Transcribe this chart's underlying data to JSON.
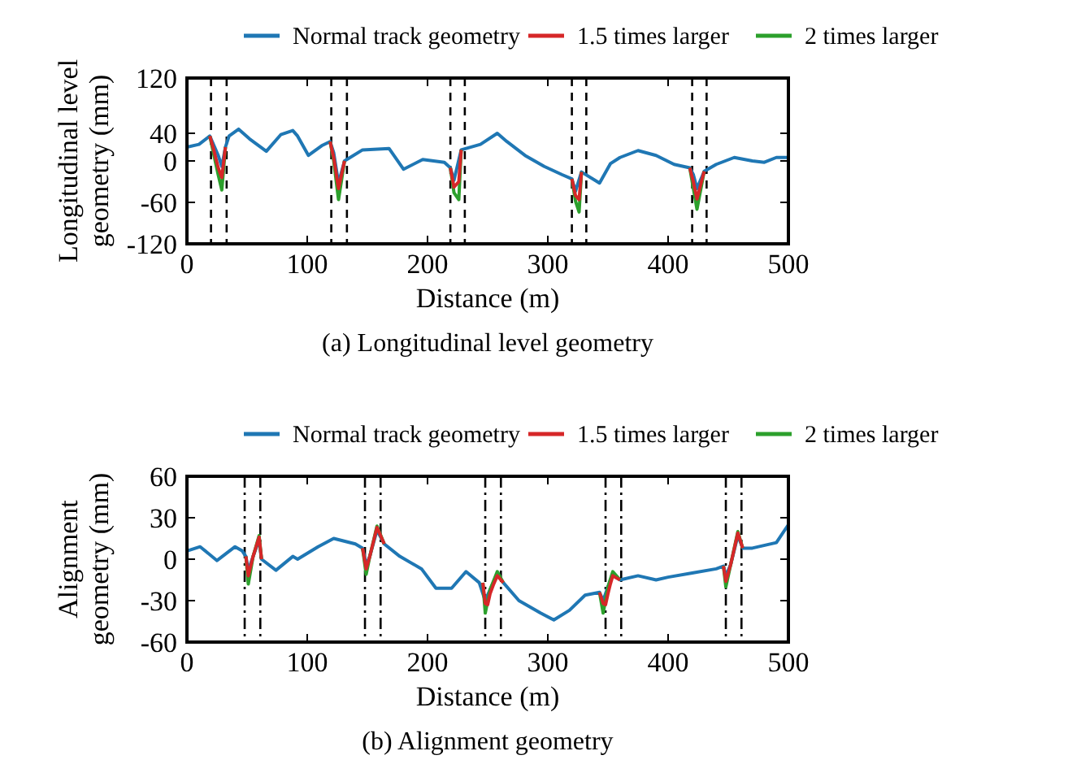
{
  "chart_data": [
    {
      "type": "line",
      "xlabel": "Distance (m)",
      "ylabel": "Longitudinal level\ngeometry (mm)",
      "annotations": [
        "(a) Longitudinal level geometry"
      ],
      "xlim": [
        0,
        500
      ],
      "xticks": [
        0,
        100,
        200,
        300,
        400,
        500
      ],
      "ylim": [
        -120,
        120
      ],
      "yticks": [
        -120,
        -60,
        0,
        40,
        120
      ],
      "legend": "top",
      "grid": false,
      "series": [
        {
          "name": "Normal track geometry",
          "color": "#1f77b4",
          "x": [
            0,
            10,
            19,
            22,
            26,
            29,
            32,
            35,
            43,
            52,
            66,
            78,
            88,
            92,
            101,
            112,
            119,
            122,
            126,
            131,
            146,
            168,
            180,
            196,
            214,
            219,
            222,
            228,
            244,
            258,
            266,
            281,
            297,
            312,
            320,
            323,
            328,
            343,
            352,
            360,
            375,
            390,
            405,
            418,
            421,
            424,
            430,
            440,
            455,
            470,
            480,
            490,
            500
          ],
          "values": [
            20,
            24,
            36,
            24,
            8,
            -8,
            20,
            36,
            46,
            32,
            14,
            38,
            44,
            36,
            8,
            22,
            28,
            12,
            -32,
            0,
            16,
            18,
            -12,
            2,
            -2,
            -10,
            -28,
            16,
            24,
            40,
            28,
            8,
            -8,
            -20,
            -26,
            -44,
            -16,
            -32,
            -4,
            5,
            15,
            8,
            -5,
            -10,
            -20,
            -40,
            -15,
            -5,
            5,
            0,
            -2,
            5,
            5
          ]
        },
        {
          "name": "1.5 times larger",
          "color": "#d62728",
          "x": [
            19,
            22,
            26,
            29,
            32,
            33,
            119,
            122,
            126,
            131,
            132,
            219,
            222,
            226,
            228,
            229,
            320,
            323,
            326,
            328,
            329,
            418,
            421,
            424,
            430
          ],
          "values": [
            36,
            18,
            -10,
            -24,
            20,
            null,
            28,
            5,
            -40,
            0,
            null,
            -10,
            -38,
            -30,
            16,
            null,
            -26,
            -50,
            -56,
            -16,
            null,
            -10,
            -30,
            -55,
            -15
          ]
        },
        {
          "name": "2 times larger",
          "color": "#2ca02c",
          "x": [
            19,
            22,
            26,
            29,
            32,
            33,
            119,
            122,
            126,
            131,
            132,
            219,
            222,
            226,
            228,
            229,
            320,
            323,
            326,
            328,
            329,
            418,
            421,
            424,
            430
          ],
          "values": [
            36,
            12,
            -20,
            -42,
            20,
            null,
            28,
            0,
            -56,
            0,
            null,
            -10,
            -46,
            -56,
            16,
            null,
            -26,
            -58,
            -74,
            -16,
            null,
            -10,
            -40,
            -70,
            -15
          ]
        }
      ],
      "ref_lines": [
        {
          "axis": "x",
          "value": 20,
          "color": "#000000",
          "line_style": "dashed"
        },
        {
          "axis": "x",
          "value": 33,
          "color": "#000000",
          "line_style": "dashed"
        },
        {
          "axis": "x",
          "value": 120,
          "color": "#000000",
          "line_style": "dashed"
        },
        {
          "axis": "x",
          "value": 133,
          "color": "#000000",
          "line_style": "dashed"
        },
        {
          "axis": "x",
          "value": 219,
          "color": "#000000",
          "line_style": "dashed"
        },
        {
          "axis": "x",
          "value": 231,
          "color": "#000000",
          "line_style": "dashed"
        },
        {
          "axis": "x",
          "value": 320,
          "color": "#000000",
          "line_style": "dashed"
        },
        {
          "axis": "x",
          "value": 332,
          "color": "#000000",
          "line_style": "dashed"
        },
        {
          "axis": "x",
          "value": 420,
          "color": "#000000",
          "line_style": "dashed"
        },
        {
          "axis": "x",
          "value": 432,
          "color": "#000000",
          "line_style": "dashed"
        }
      ]
    },
    {
      "type": "line",
      "xlabel": "Distance (m)",
      "ylabel": "Alignment\ngeometry (mm)",
      "annotations": [
        "(b) Alignment geometry"
      ],
      "xlim": [
        0,
        500
      ],
      "xticks": [
        0,
        100,
        200,
        300,
        400,
        500
      ],
      "ylim": [
        -60,
        60
      ],
      "yticks": [
        -60,
        -30,
        0,
        30,
        60
      ],
      "legend": "top",
      "grid": false,
      "series": [
        {
          "name": "Normal track geometry",
          "color": "#1f77b4",
          "x": [
            0,
            11,
            25,
            40,
            46,
            49,
            51,
            55,
            60,
            62,
            74,
            88,
            92,
            109,
            122,
            140,
            146,
            149,
            152,
            158,
            164,
            177,
            195,
            207,
            220,
            232,
            243,
            248,
            252,
            258,
            263,
            276,
            294,
            305,
            318,
            331,
            343,
            346,
            350,
            354,
            360,
            375,
            390,
            400,
            420,
            440,
            446,
            448,
            452,
            458,
            462,
            470,
            490,
            500
          ],
          "values": [
            6,
            9,
            -1,
            9,
            6,
            2,
            -8,
            2,
            14,
            0,
            -8,
            2,
            0,
            9,
            15,
            11,
            8,
            -4,
            2,
            21,
            11,
            2,
            -7,
            -21,
            -21,
            -9,
            -17,
            -30,
            -22,
            -11,
            -17,
            -30,
            -39,
            -44,
            -37,
            -26,
            -24,
            -30,
            -20,
            -11,
            -15,
            -12,
            -15,
            -13,
            -10,
            -7,
            -5,
            -12,
            -4,
            17,
            8,
            8,
            12,
            25
          ]
        },
        {
          "name": "1.5 times larger",
          "color": "#d62728",
          "x": [
            49,
            51,
            55,
            60,
            62,
            63,
            146,
            149,
            152,
            158,
            164,
            165,
            246,
            248,
            250,
            252,
            255,
            258,
            263,
            264,
            343,
            346,
            348,
            350,
            352,
            354,
            360,
            361,
            446,
            448,
            452,
            458,
            462
          ],
          "values": [
            2,
            -12,
            2,
            16,
            0,
            null,
            8,
            -7,
            2,
            23,
            11,
            null,
            -17,
            -32,
            -33,
            -25,
            -18,
            -12,
            -17,
            null,
            -24,
            -32,
            -33,
            -25,
            -18,
            -12,
            -15,
            null,
            -5,
            -16,
            -4,
            19,
            8
          ]
        },
        {
          "name": "2 times larger",
          "color": "#2ca02c",
          "x": [
            49,
            51,
            55,
            60,
            62,
            63,
            146,
            149,
            152,
            158,
            164,
            165,
            246,
            248,
            252,
            258,
            263,
            264,
            343,
            346,
            350,
            354,
            360,
            361,
            446,
            448,
            452,
            458,
            462
          ],
          "values": [
            2,
            -18,
            2,
            17,
            0,
            null,
            8,
            -11,
            2,
            24,
            11,
            null,
            -17,
            -39,
            -22,
            -9,
            -17,
            null,
            -24,
            -39,
            -20,
            -9,
            -15,
            null,
            -5,
            -20,
            -4,
            20,
            8
          ]
        }
      ],
      "ref_lines": [
        {
          "axis": "x",
          "value": 48,
          "color": "#000000",
          "line_style": "dashdot"
        },
        {
          "axis": "x",
          "value": 61,
          "color": "#000000",
          "line_style": "dashdot"
        },
        {
          "axis": "x",
          "value": 148,
          "color": "#000000",
          "line_style": "dashdot"
        },
        {
          "axis": "x",
          "value": 161,
          "color": "#000000",
          "line_style": "dashdot"
        },
        {
          "axis": "x",
          "value": 248,
          "color": "#000000",
          "line_style": "dashdot"
        },
        {
          "axis": "x",
          "value": 261,
          "color": "#000000",
          "line_style": "dashdot"
        },
        {
          "axis": "x",
          "value": 348,
          "color": "#000000",
          "line_style": "dashdot"
        },
        {
          "axis": "x",
          "value": 361,
          "color": "#000000",
          "line_style": "dashdot"
        },
        {
          "axis": "x",
          "value": 448,
          "color": "#000000",
          "line_style": "dashdot"
        },
        {
          "axis": "x",
          "value": 461,
          "color": "#000000",
          "line_style": "dashdot"
        }
      ]
    }
  ]
}
